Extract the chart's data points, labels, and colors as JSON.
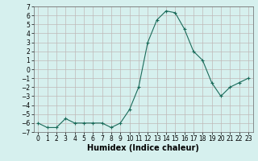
{
  "x": [
    0,
    1,
    2,
    3,
    4,
    5,
    6,
    7,
    8,
    9,
    10,
    11,
    12,
    13,
    14,
    15,
    16,
    17,
    18,
    19,
    20,
    21,
    22,
    23
  ],
  "y": [
    -6.0,
    -6.5,
    -6.5,
    -5.5,
    -6.0,
    -6.0,
    -6.0,
    -6.0,
    -6.5,
    -6.0,
    -4.5,
    -2.0,
    3.0,
    5.5,
    6.5,
    6.3,
    4.5,
    2.0,
    1.0,
    -1.5,
    -3.0,
    -2.0,
    -1.5,
    -1.0
  ],
  "xlim": [
    -0.5,
    23.5
  ],
  "ylim": [
    -7,
    7
  ],
  "xticks": [
    0,
    1,
    2,
    3,
    4,
    5,
    6,
    7,
    8,
    9,
    10,
    11,
    12,
    13,
    14,
    15,
    16,
    17,
    18,
    19,
    20,
    21,
    22,
    23
  ],
  "yticks": [
    -7,
    -6,
    -5,
    -4,
    -3,
    -2,
    -1,
    0,
    1,
    2,
    3,
    4,
    5,
    6,
    7
  ],
  "xlabel": "Humidex (Indice chaleur)",
  "line_color": "#1a6b5a",
  "marker": "+",
  "bg_color": "#d6f0ee",
  "grid_color": "#c0b8b8",
  "xlabel_fontsize": 7,
  "tick_fontsize": 5.5
}
